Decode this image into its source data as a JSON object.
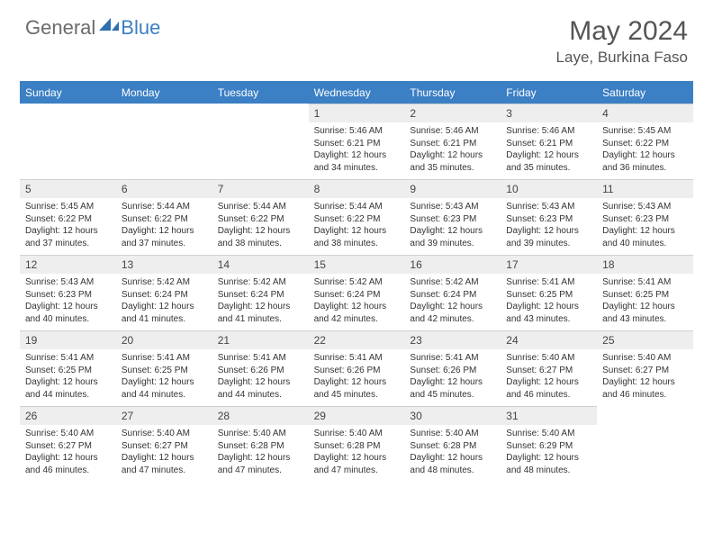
{
  "brand": {
    "text1": "General",
    "text2": "Blue",
    "shape_color": "#2f6fb0"
  },
  "title": "May 2024",
  "location": "Laye, Burkina Faso",
  "colors": {
    "header_bar": "#3b7fc4",
    "daynum_bg": "#eeeeee",
    "rule": "#d0d0d0",
    "text": "#333333"
  },
  "weekdays": [
    "Sunday",
    "Monday",
    "Tuesday",
    "Wednesday",
    "Thursday",
    "Friday",
    "Saturday"
  ],
  "weeks": [
    [
      null,
      null,
      null,
      {
        "n": "1",
        "sr": "5:46 AM",
        "ss": "6:21 PM",
        "dl": "12 hours and 34 minutes."
      },
      {
        "n": "2",
        "sr": "5:46 AM",
        "ss": "6:21 PM",
        "dl": "12 hours and 35 minutes."
      },
      {
        "n": "3",
        "sr": "5:46 AM",
        "ss": "6:21 PM",
        "dl": "12 hours and 35 minutes."
      },
      {
        "n": "4",
        "sr": "5:45 AM",
        "ss": "6:22 PM",
        "dl": "12 hours and 36 minutes."
      }
    ],
    [
      {
        "n": "5",
        "sr": "5:45 AM",
        "ss": "6:22 PM",
        "dl": "12 hours and 37 minutes."
      },
      {
        "n": "6",
        "sr": "5:44 AM",
        "ss": "6:22 PM",
        "dl": "12 hours and 37 minutes."
      },
      {
        "n": "7",
        "sr": "5:44 AM",
        "ss": "6:22 PM",
        "dl": "12 hours and 38 minutes."
      },
      {
        "n": "8",
        "sr": "5:44 AM",
        "ss": "6:22 PM",
        "dl": "12 hours and 38 minutes."
      },
      {
        "n": "9",
        "sr": "5:43 AM",
        "ss": "6:23 PM",
        "dl": "12 hours and 39 minutes."
      },
      {
        "n": "10",
        "sr": "5:43 AM",
        "ss": "6:23 PM",
        "dl": "12 hours and 39 minutes."
      },
      {
        "n": "11",
        "sr": "5:43 AM",
        "ss": "6:23 PM",
        "dl": "12 hours and 40 minutes."
      }
    ],
    [
      {
        "n": "12",
        "sr": "5:43 AM",
        "ss": "6:23 PM",
        "dl": "12 hours and 40 minutes."
      },
      {
        "n": "13",
        "sr": "5:42 AM",
        "ss": "6:24 PM",
        "dl": "12 hours and 41 minutes."
      },
      {
        "n": "14",
        "sr": "5:42 AM",
        "ss": "6:24 PM",
        "dl": "12 hours and 41 minutes."
      },
      {
        "n": "15",
        "sr": "5:42 AM",
        "ss": "6:24 PM",
        "dl": "12 hours and 42 minutes."
      },
      {
        "n": "16",
        "sr": "5:42 AM",
        "ss": "6:24 PM",
        "dl": "12 hours and 42 minutes."
      },
      {
        "n": "17",
        "sr": "5:41 AM",
        "ss": "6:25 PM",
        "dl": "12 hours and 43 minutes."
      },
      {
        "n": "18",
        "sr": "5:41 AM",
        "ss": "6:25 PM",
        "dl": "12 hours and 43 minutes."
      }
    ],
    [
      {
        "n": "19",
        "sr": "5:41 AM",
        "ss": "6:25 PM",
        "dl": "12 hours and 44 minutes."
      },
      {
        "n": "20",
        "sr": "5:41 AM",
        "ss": "6:25 PM",
        "dl": "12 hours and 44 minutes."
      },
      {
        "n": "21",
        "sr": "5:41 AM",
        "ss": "6:26 PM",
        "dl": "12 hours and 44 minutes."
      },
      {
        "n": "22",
        "sr": "5:41 AM",
        "ss": "6:26 PM",
        "dl": "12 hours and 45 minutes."
      },
      {
        "n": "23",
        "sr": "5:41 AM",
        "ss": "6:26 PM",
        "dl": "12 hours and 45 minutes."
      },
      {
        "n": "24",
        "sr": "5:40 AM",
        "ss": "6:27 PM",
        "dl": "12 hours and 46 minutes."
      },
      {
        "n": "25",
        "sr": "5:40 AM",
        "ss": "6:27 PM",
        "dl": "12 hours and 46 minutes."
      }
    ],
    [
      {
        "n": "26",
        "sr": "5:40 AM",
        "ss": "6:27 PM",
        "dl": "12 hours and 46 minutes."
      },
      {
        "n": "27",
        "sr": "5:40 AM",
        "ss": "6:27 PM",
        "dl": "12 hours and 47 minutes."
      },
      {
        "n": "28",
        "sr": "5:40 AM",
        "ss": "6:28 PM",
        "dl": "12 hours and 47 minutes."
      },
      {
        "n": "29",
        "sr": "5:40 AM",
        "ss": "6:28 PM",
        "dl": "12 hours and 47 minutes."
      },
      {
        "n": "30",
        "sr": "5:40 AM",
        "ss": "6:28 PM",
        "dl": "12 hours and 48 minutes."
      },
      {
        "n": "31",
        "sr": "5:40 AM",
        "ss": "6:29 PM",
        "dl": "12 hours and 48 minutes."
      },
      null
    ]
  ],
  "labels": {
    "sunrise": "Sunrise:",
    "sunset": "Sunset:",
    "daylight": "Daylight:"
  }
}
